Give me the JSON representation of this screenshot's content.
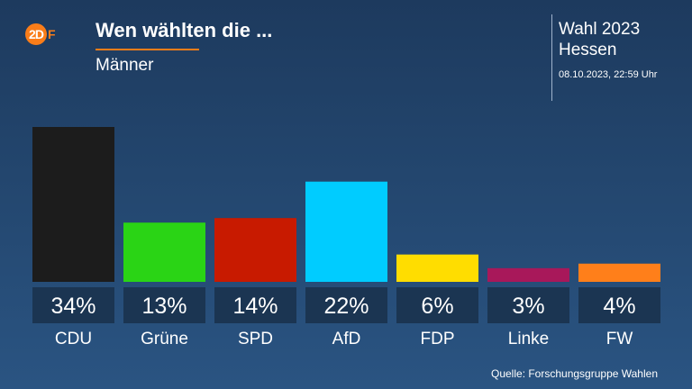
{
  "header": {
    "logo_circle": "2D",
    "logo_rest": "F",
    "title": "Wen wählten die ...",
    "subtitle": "Männer",
    "election": "Wahl 2023",
    "region": "Hessen",
    "timestamp": "08.10.2023, 22:59 Uhr"
  },
  "footer": {
    "source": "Quelle: Forschungsgruppe Wahlen"
  },
  "colors": {
    "accent": "#fa7d19",
    "label_box": "#1b3552"
  },
  "chart_data": {
    "type": "bar",
    "title": "Wen wählten die ...",
    "subtitle": "Männer",
    "categories": [
      "CDU",
      "Grüne",
      "SPD",
      "AfD",
      "FDP",
      "Linke",
      "FW"
    ],
    "values": [
      34,
      13,
      14,
      22,
      6,
      3,
      4
    ],
    "value_labels": [
      "34%",
      "13%",
      "14%",
      "22%",
      "6%",
      "3%",
      "4%"
    ],
    "colors": [
      "#1c1c1c",
      "#2ad415",
      "#c81a00",
      "#00ccff",
      "#ffdd00",
      "#a8185a",
      "#ff7f1a"
    ],
    "unit": "%",
    "ylim": [
      0,
      34
    ],
    "grid": false,
    "legend": "none"
  }
}
